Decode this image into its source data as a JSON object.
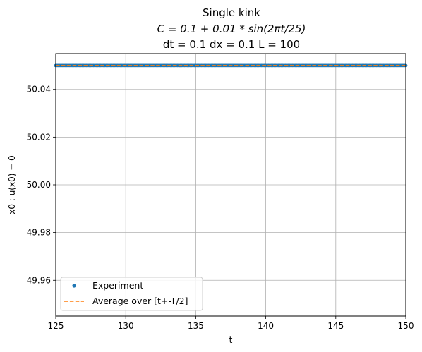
{
  "chart_data": {
    "type": "line",
    "title": "Single kink",
    "title_equation": "C = 0.1 + 0.01 * sin(2πt/25)",
    "subtitle": "dt = 0.1 dx = 0.1 L = 100",
    "xlabel": "t",
    "ylabel": "x0 : u(x0) = 0",
    "xlim": [
      125,
      150
    ],
    "ylim": [
      49.945,
      50.055
    ],
    "xticks": [
      125,
      130,
      135,
      140,
      145,
      150
    ],
    "yticks": [
      49.96,
      49.98,
      50.0,
      50.02,
      50.04
    ],
    "xtick_labels": [
      "125",
      "130",
      "135",
      "140",
      "145",
      "150"
    ],
    "ytick_labels": [
      "49.96",
      "49.98",
      "50.00",
      "50.02",
      "50.04"
    ],
    "grid": true,
    "legend_position": "lower-left",
    "series": [
      {
        "name": "Experiment",
        "style": "dots",
        "color": "#1f77b4",
        "x_start": 125,
        "x_end": 150,
        "x_step": 0.1,
        "y_constant": 50.05
      },
      {
        "name": "Average over [t+-T/2]",
        "style": "dashed",
        "color": "#ff7f0e",
        "x": [
          125,
          150
        ],
        "y": [
          50.05,
          50.05
        ]
      }
    ]
  }
}
